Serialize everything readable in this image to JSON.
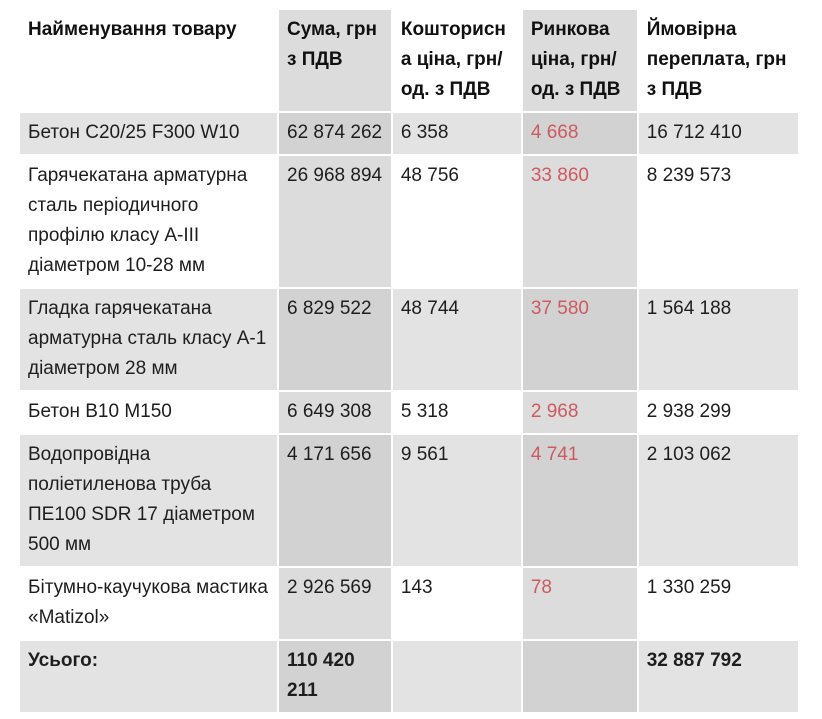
{
  "colors": {
    "row_stripe": "#e3e3e3",
    "column_stripe": "#dcdcdc",
    "stripe_overlap": "#d2d2d2",
    "market_price_red": "#cd5a5f",
    "text": "#1e1e1e",
    "background": "#ffffff"
  },
  "chart_data": {
    "type": "table",
    "title": "",
    "columns": [
      "Найменування товару",
      "Сума, грн з ПДВ",
      "Кошторисна ціна, грн/од. з ПДВ",
      "Ринкова ціна, грн/ од. з ПДВ",
      "Ймовірна переплата, грн з ПДВ"
    ],
    "rows": [
      [
        "Бетон С20/25 F300 W10",
        "62 874 262",
        "6 358",
        "4 668",
        "16 712 410"
      ],
      [
        "Гарячекатана арматурна сталь періодичного профілю класу А-ІІІ діаметром 10-28 мм",
        "26 968 894",
        "48 756",
        "33 860",
        "8 239 573"
      ],
      [
        "Гладка гарячекатана арматурна сталь класу А-1 діаметром 28 мм",
        "6 829 522",
        "48 744",
        "37 580",
        "1 564 188"
      ],
      [
        "Бетон В10 М150",
        "6 649 308",
        "5 318",
        "2 968",
        "2 938 299"
      ],
      [
        "Водопровідна поліетиленова труба ПЕ100 SDR 17 діаметром 500 мм",
        "4 171 656",
        "9 561",
        "4 741",
        "2 103 062"
      ],
      [
        "Бітумно-каучукова мастика «Matizol»",
        "2 926 569",
        "143",
        "78",
        "1 330 259"
      ],
      [
        "Усього:",
        "110 420 211",
        "",
        "",
        "32 887 792"
      ]
    ]
  }
}
